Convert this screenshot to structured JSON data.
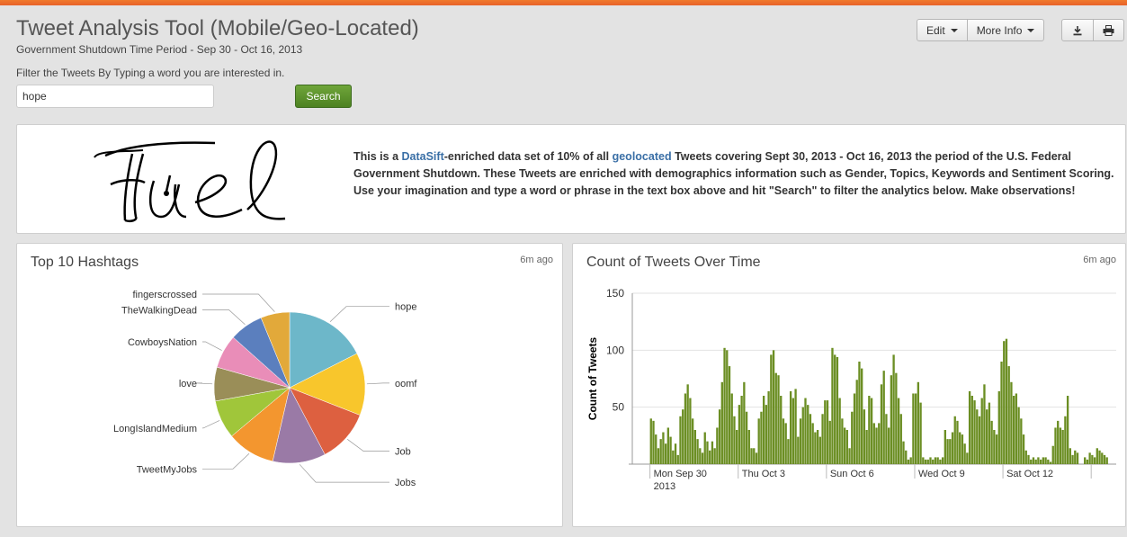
{
  "header": {
    "title": "Tweet Analysis Tool (Mobile/Geo-Located)",
    "subtitle": "Government Shutdown Time Period - Sep 30 - Oct 16, 2013",
    "edit_label": "Edit",
    "more_info_label": "More Info"
  },
  "filter": {
    "label": "Filter the Tweets By Typing a word you are interested in.",
    "value": "hope",
    "button_label": "Search"
  },
  "intro": {
    "logo_text": "Fuel",
    "text_1": "This is a ",
    "link_1": "DataSift",
    "text_2": "-enriched data set of 10% of all ",
    "link_2": "geolocated",
    "text_3": " Tweets covering Sept 30, 2013 - Oct 16, 2013 the period of the U.S. Federal Government Shutdown. These Tweets are enriched with demographics information such as Gender, Topics, Keywords and Sentiment Scoring. Use your imagination and type a word or phrase in the text box above and hit \"Search\" to filter the analytics below. Make observations!"
  },
  "hashtags_panel": {
    "title": "Top 10 Hashtags",
    "updated": "6m ago"
  },
  "tweets_panel": {
    "title": "Count of Tweets Over Time",
    "updated": "6m ago"
  },
  "colors": {
    "accent_orange": "#e8622a",
    "search_green": "#5a8f2b",
    "bar_green": "#6b8e23",
    "link_blue": "#3a6fa6"
  },
  "chart_data": [
    {
      "type": "pie",
      "title": "Top 10 Hashtags",
      "categories": [
        "hope",
        "oomf",
        "Job",
        "Jobs",
        "TweetMyJobs",
        "LongIslandMedium",
        "love",
        "CowboysNation",
        "TheWalkingDead",
        "fingerscrossed"
      ],
      "values": [
        17,
        13,
        11,
        11,
        10,
        8,
        7,
        7,
        7,
        6
      ],
      "colors": [
        "#6db7c9",
        "#f8c62c",
        "#dd6040",
        "#9a7aa6",
        "#f3962f",
        "#a0c63a",
        "#9a8e58",
        "#e98db8",
        "#5b7fbe",
        "#e2a93a"
      ]
    },
    {
      "type": "bar",
      "title": "Count of Tweets Over Time",
      "xlabel": "",
      "ylabel": "Count of Tweets",
      "ylim": [
        0,
        150
      ],
      "yticks": [
        50,
        100,
        150
      ],
      "xtick_labels": [
        "Mon Sep 30\n2013",
        "Thu Oct 3",
        "Sun Oct 6",
        "Wed Oct 9",
        "Sat Oct 12"
      ],
      "xtick_positions": [
        0,
        3,
        6,
        9,
        12
      ],
      "x_range_days": [
        -0.6,
        15.85
      ],
      "bar_hours": 2,
      "values": [
        40,
        38,
        26,
        14,
        22,
        28,
        18,
        32,
        24,
        12,
        18,
        8,
        42,
        48,
        62,
        70,
        58,
        40,
        30,
        22,
        14,
        10,
        28,
        20,
        12,
        20,
        14,
        32,
        48,
        72,
        102,
        100,
        86,
        62,
        42,
        30,
        52,
        60,
        72,
        46,
        30,
        14,
        14,
        10,
        40,
        46,
        60,
        52,
        64,
        96,
        100,
        80,
        78,
        60,
        40,
        36,
        22,
        64,
        58,
        66,
        24,
        40,
        50,
        58,
        52,
        44,
        36,
        28,
        30,
        24,
        44,
        56,
        56,
        38,
        102,
        96,
        94,
        58,
        40,
        32,
        30,
        14,
        46,
        62,
        74,
        90,
        84,
        48,
        30,
        60,
        58,
        36,
        32,
        36,
        70,
        82,
        44,
        32,
        78,
        96,
        80,
        58,
        44,
        20,
        12,
        4,
        6,
        62,
        62,
        72,
        54,
        6,
        4,
        4,
        6,
        4,
        6,
        6,
        4,
        6,
        30,
        22,
        22,
        28,
        42,
        38,
        28,
        26,
        18,
        10,
        64,
        60,
        56,
        48,
        42,
        58,
        70,
        48,
        54,
        38,
        30,
        26,
        64,
        90,
        108,
        110,
        86,
        72,
        60,
        62,
        50,
        40,
        26,
        12,
        8,
        4,
        6,
        4,
        6,
        4,
        6,
        6,
        4,
        2,
        16,
        32,
        38,
        32,
        30,
        42,
        60,
        14,
        8,
        12,
        10,
        0,
        0,
        6,
        4,
        10,
        8,
        6,
        14,
        12,
        10,
        8,
        6
      ]
    }
  ]
}
